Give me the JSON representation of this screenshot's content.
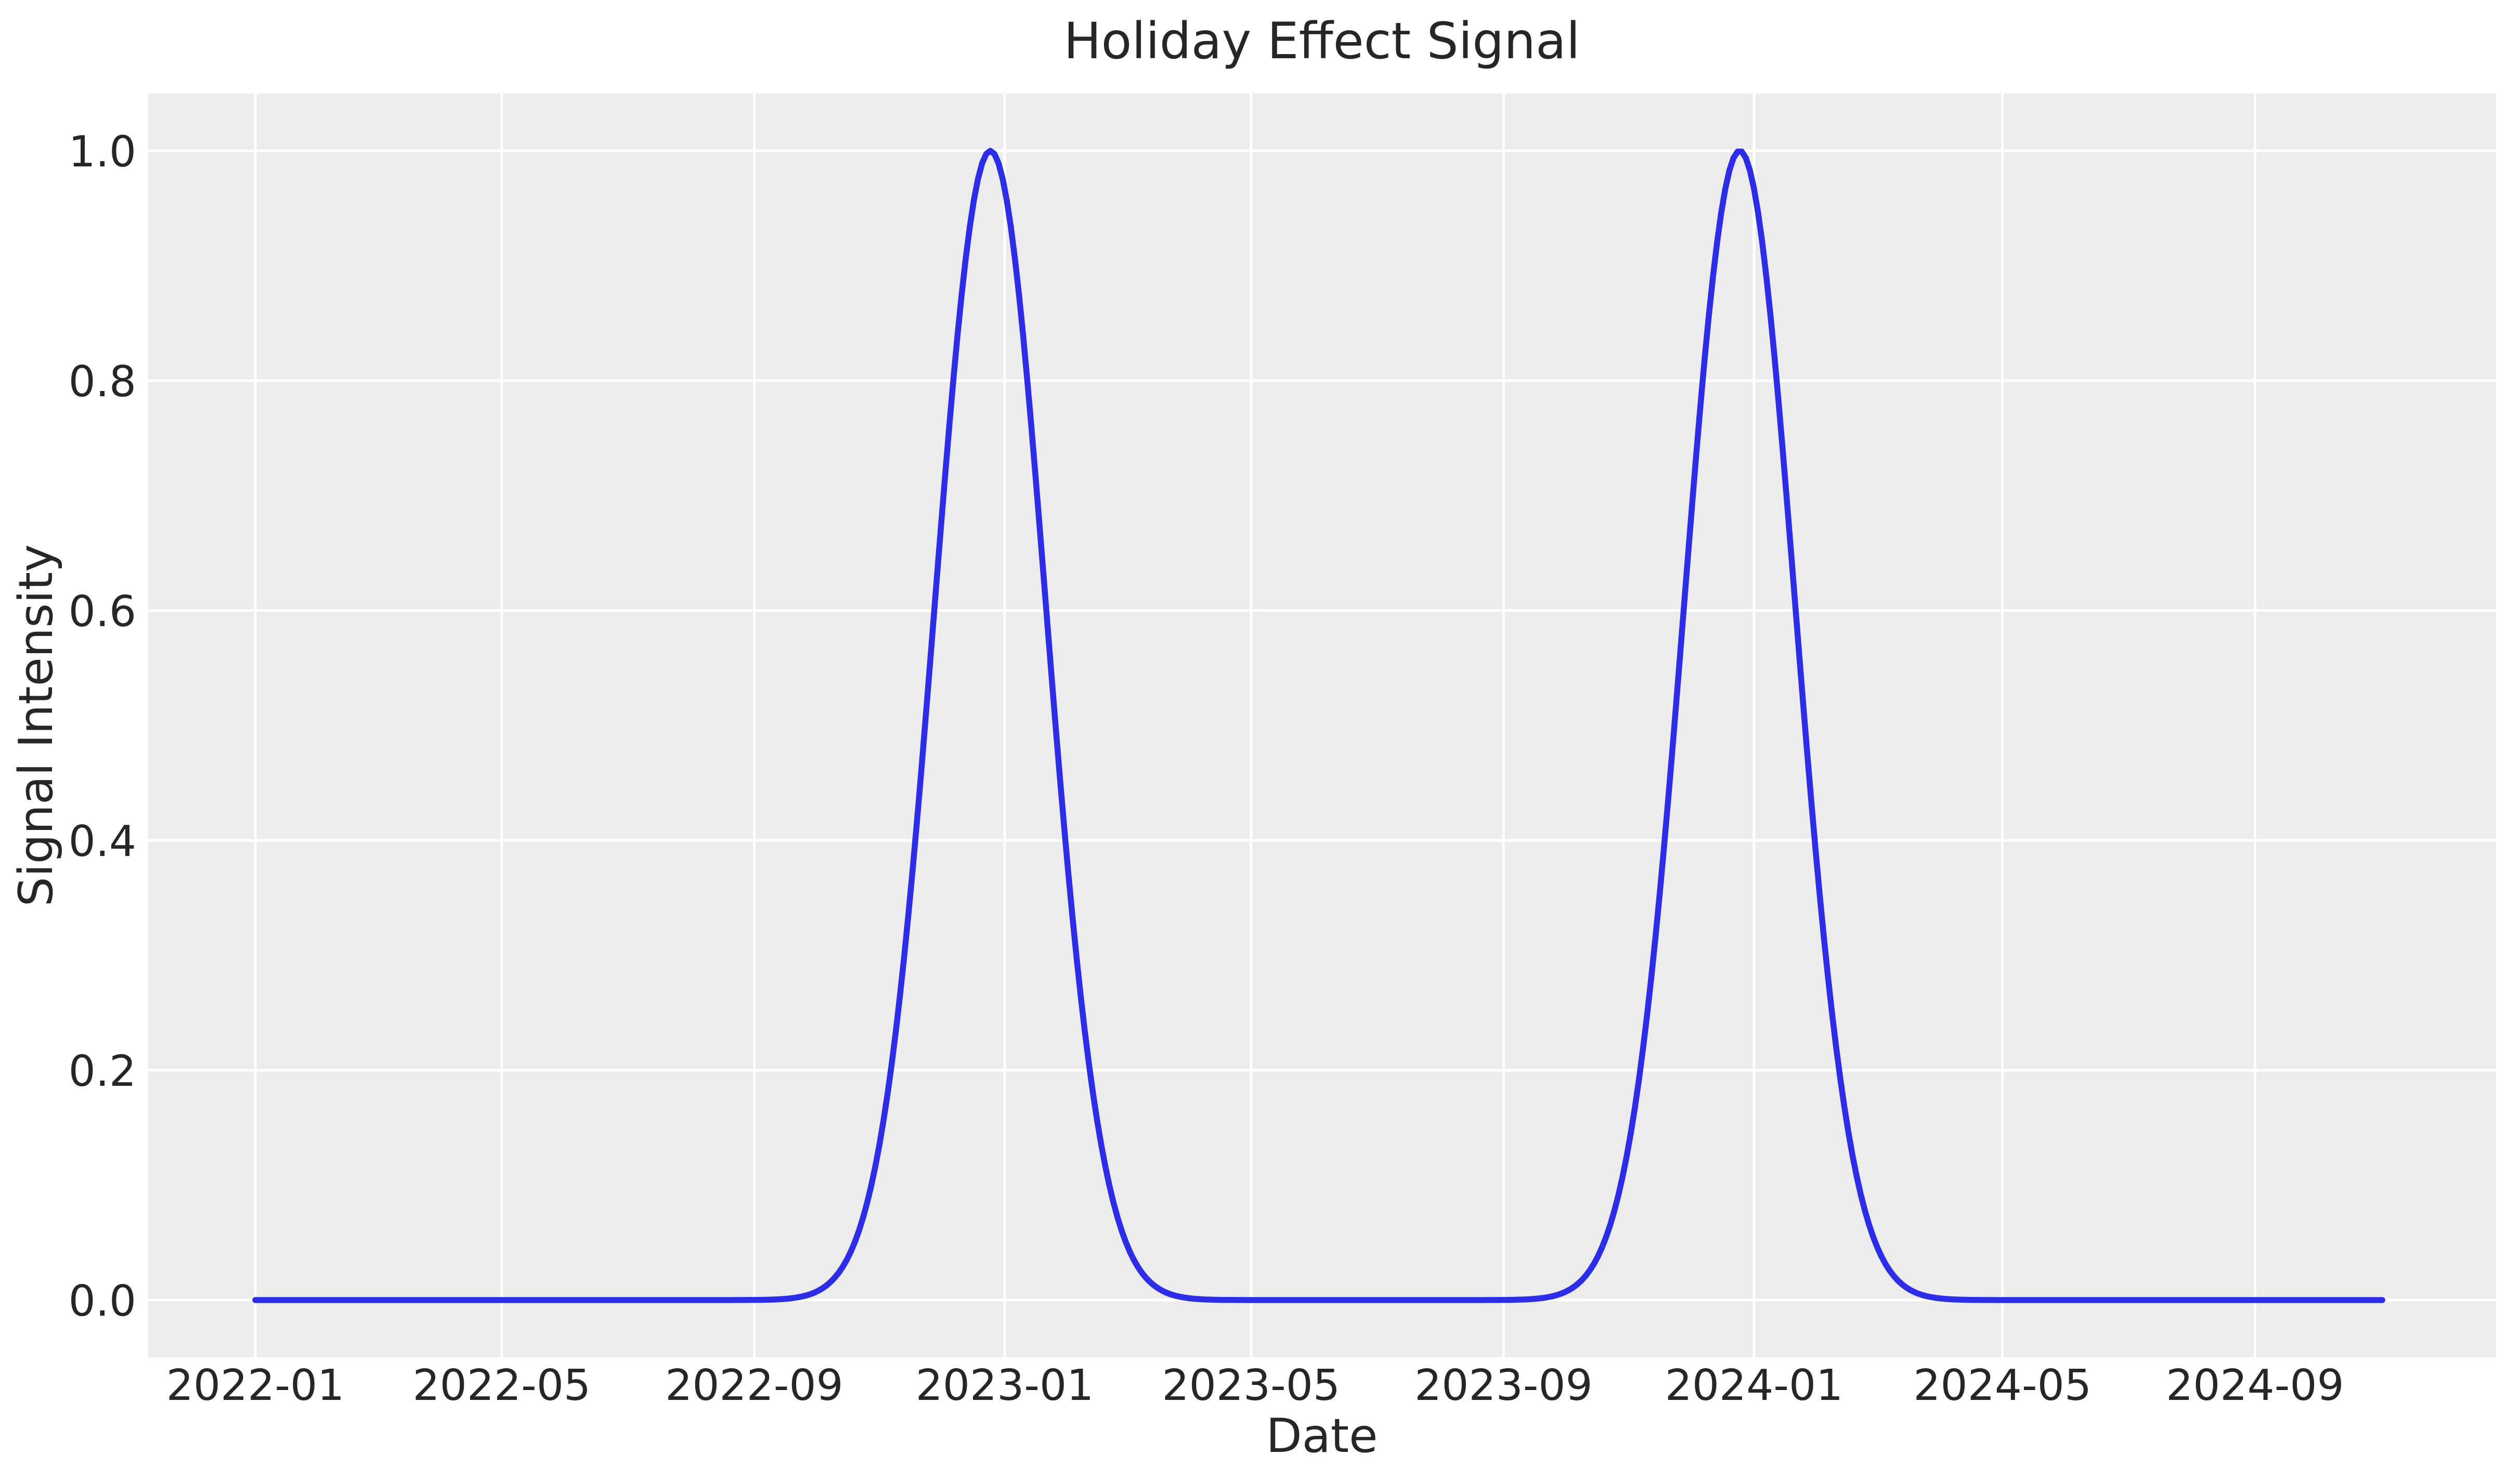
{
  "figure": {
    "background": "#ffffff",
    "axes_background": "#ececec",
    "grid_color": "#ffffff",
    "text_color": "#262626"
  },
  "chart_data": {
    "type": "line",
    "title": "Holiday Effect Signal",
    "xlabel": "Date",
    "ylabel": "Signal Intensity",
    "grid": true,
    "legend": null,
    "ylim": [
      -0.05,
      1.05
    ],
    "y_ticks": [
      {
        "label": "0.0",
        "value": 0.0
      },
      {
        "label": "0.2",
        "value": 0.2
      },
      {
        "label": "0.4",
        "value": 0.4
      },
      {
        "label": "0.6",
        "value": 0.6
      },
      {
        "label": "0.8",
        "value": 0.8
      },
      {
        "label": "1.0",
        "value": 1.0
      }
    ],
    "x_ticks": [
      {
        "label": "2022-01",
        "date": "2022-01-01"
      },
      {
        "label": "2022-05",
        "date": "2022-05-01"
      },
      {
        "label": "2022-09",
        "date": "2022-09-01"
      },
      {
        "label": "2023-01",
        "date": "2023-01-01"
      },
      {
        "label": "2023-05",
        "date": "2023-05-01"
      },
      {
        "label": "2023-09",
        "date": "2023-09-01"
      },
      {
        "label": "2024-01",
        "date": "2024-01-01"
      },
      {
        "label": "2024-05",
        "date": "2024-05-01"
      },
      {
        "label": "2024-09",
        "date": "2024-09-01"
      }
    ],
    "series": [
      {
        "name": "Holiday Effect Signal",
        "color": "#2d2de8",
        "start_date": "2022-01-01",
        "end_date": "2024-11-02",
        "baseline_value": 0.0,
        "peak_value": 1.0,
        "model": {
          "kind": "sum_of_gaussians",
          "peak_dates": [
            "2022-12-25",
            "2023-12-25"
          ],
          "sigma_days": 27,
          "amplitude": 1.0
        },
        "keypoints": [
          [
            "2022-01-01",
            0.0
          ],
          [
            "2022-09-01",
            0.0
          ],
          [
            "2022-10-16",
            0.03
          ],
          [
            "2022-11-24",
            0.5
          ],
          [
            "2022-12-25",
            1.0
          ],
          [
            "2023-01-25",
            0.5
          ],
          [
            "2023-03-05",
            0.03
          ],
          [
            "2023-05-01",
            0.0
          ],
          [
            "2023-09-01",
            0.0
          ],
          [
            "2023-10-16",
            0.03
          ],
          [
            "2023-11-24",
            0.5
          ],
          [
            "2023-12-25",
            1.0
          ],
          [
            "2024-01-25",
            0.5
          ],
          [
            "2024-03-04",
            0.03
          ],
          [
            "2024-05-01",
            0.0
          ],
          [
            "2024-09-01",
            0.0
          ],
          [
            "2024-11-02",
            0.0
          ]
        ]
      }
    ]
  }
}
